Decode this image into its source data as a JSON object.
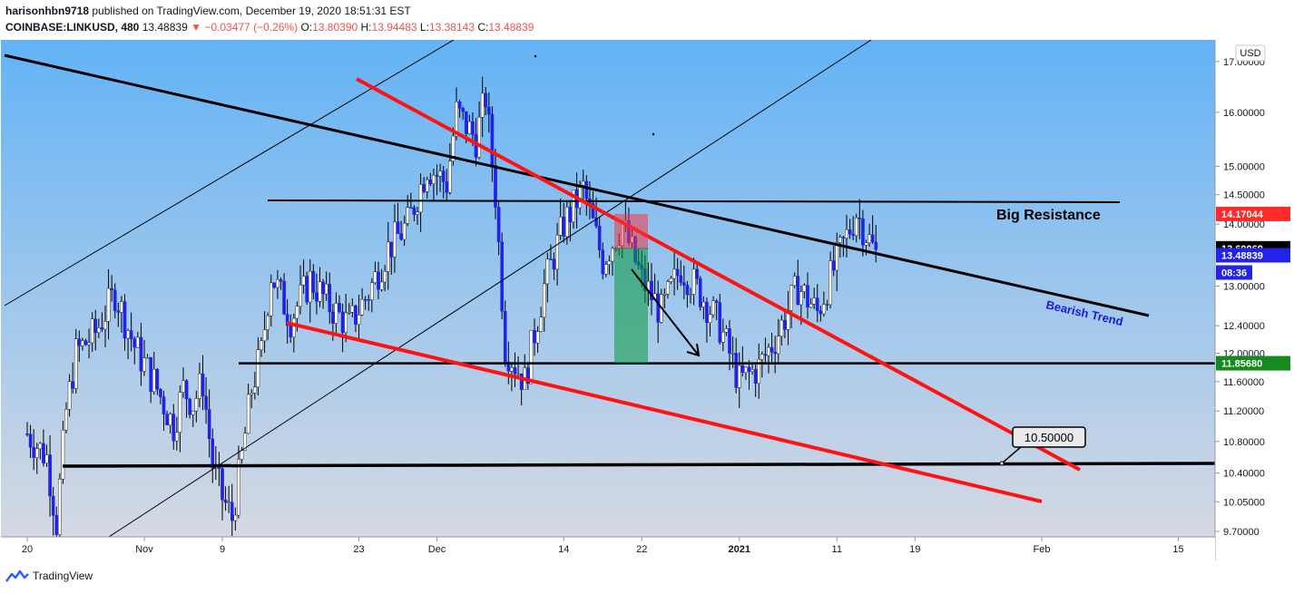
{
  "header": {
    "author": "harisonhbn9718",
    "published_text": "published on TradingView.com, December 19, 2020 18:51:31 EST",
    "symbol": "COINBASE:LINKUSD, 480",
    "last": "13.48839",
    "change": "−0.03477 (−0.26%)",
    "o_label": "O:",
    "o_value": "13.80390",
    "h_label": "H:",
    "h_value": "13.94483",
    "l_label": "L:",
    "l_value": "13.38143",
    "c_label": "C:",
    "c_value": "13.48839"
  },
  "currency": "USD",
  "brand": "TradingView",
  "colors": {
    "bg_top": "#63b3f6",
    "bg_bottom": "#d5d9e3",
    "up": "#ffffff",
    "down": "#1e22ee",
    "red": "#ff1212",
    "black": "#000000"
  },
  "chart_data": {
    "type": "candlestick",
    "log_scale": true,
    "ylim": [
      9.7,
      17.2
    ],
    "y_ticks": [
      "9.70000",
      "10.05000",
      "10.40000",
      "10.80000",
      "11.20000",
      "11.60000",
      "12.00000",
      "12.40000",
      "13.00000",
      "14.00000",
      "14.50000",
      "15.00000",
      "16.00000",
      "17.00000"
    ],
    "x_ticks": [
      "20",
      "Nov",
      "9",
      "23",
      "Dec",
      "14",
      "22",
      "2021",
      "11",
      "19",
      "Feb",
      "15"
    ],
    "x_tick_dates": [
      "2020-10-20",
      "2020-11-01",
      "2020-11-09",
      "2020-11-23",
      "2020-12-01",
      "2020-12-14",
      "2020-12-22",
      "2021-01-01",
      "2021-01-11",
      "2021-01-19",
      "2021-02-01",
      "2021-02-15"
    ],
    "price_labels": [
      {
        "value": "14.17044",
        "color": "#ff2a2a"
      },
      {
        "value": "13.60069",
        "color": "#000000"
      },
      {
        "value": "13.48839",
        "color": "#2323e8"
      },
      {
        "value": "08:36",
        "color": "#2323e8"
      },
      {
        "value": "11.85680",
        "color": "#16891f"
      }
    ],
    "series_path": [
      [
        "2020-10-20",
        10.9
      ],
      [
        "2020-10-22",
        10.6
      ],
      [
        "2020-10-23",
        9.8
      ],
      [
        "2020-10-24",
        11.2
      ],
      [
        "2020-10-25",
        12.0
      ],
      [
        "2020-10-27",
        12.3
      ],
      [
        "2020-10-29",
        12.9
      ],
      [
        "2020-10-31",
        12.1
      ],
      [
        "2020-11-02",
        11.6
      ],
      [
        "2020-11-04",
        11.0
      ],
      [
        "2020-11-05",
        11.5
      ],
      [
        "2020-11-06",
        11.3
      ],
      [
        "2020-11-07",
        11.6
      ],
      [
        "2020-11-08",
        10.5
      ],
      [
        "2020-11-09",
        10.1
      ],
      [
        "2020-11-10",
        9.85
      ],
      [
        "2020-11-11",
        10.6
      ],
      [
        "2020-11-12",
        11.5
      ],
      [
        "2020-11-13",
        12.0
      ],
      [
        "2020-11-14",
        13.2
      ],
      [
        "2020-11-16",
        12.5
      ],
      [
        "2020-11-18",
        13.1
      ],
      [
        "2020-11-20",
        12.7
      ],
      [
        "2020-11-22",
        12.4
      ],
      [
        "2020-11-24",
        12.9
      ],
      [
        "2020-11-26",
        13.6
      ],
      [
        "2020-11-28",
        14.0
      ],
      [
        "2020-11-30",
        15.0
      ],
      [
        "2020-12-02",
        14.7
      ],
      [
        "2020-12-03",
        16.0
      ],
      [
        "2020-12-05",
        15.5
      ],
      [
        "2020-12-06",
        16.3
      ],
      [
        "2020-12-07",
        14.5
      ],
      [
        "2020-12-08",
        12.1
      ],
      [
        "2020-12-10",
        11.6
      ],
      [
        "2020-12-11",
        12.3
      ],
      [
        "2020-12-12",
        13.0
      ],
      [
        "2020-12-14",
        14.0
      ],
      [
        "2020-12-16",
        14.6
      ],
      [
        "2020-12-18",
        13.4
      ],
      [
        "2020-12-20",
        14.0
      ],
      [
        "2020-12-22",
        13.1
      ],
      [
        "2020-12-24",
        12.6
      ],
      [
        "2020-12-26",
        13.3
      ],
      [
        "2020-12-28",
        12.9
      ],
      [
        "2020-12-30",
        12.4
      ],
      [
        "2021-01-01",
        11.6
      ],
      [
        "2021-01-03",
        11.8
      ],
      [
        "2021-01-05",
        12.3
      ],
      [
        "2021-01-07",
        13.0
      ],
      [
        "2021-01-09",
        12.6
      ],
      [
        "2021-01-11",
        13.4
      ],
      [
        "2021-01-13",
        14.2
      ],
      [
        "2021-01-15",
        13.5
      ]
    ],
    "annotations": {
      "big_resistance": {
        "label": "Big Resistance",
        "price": 14.2
      },
      "bearish_trend": {
        "label": "Bearish Trend"
      },
      "support_1": {
        "price": 11.8568
      },
      "support_2": {
        "label": "10.50000",
        "price": 10.5
      },
      "position": {
        "entry": 13.60069,
        "stop": 14.17044,
        "target": 11.8568
      }
    }
  }
}
